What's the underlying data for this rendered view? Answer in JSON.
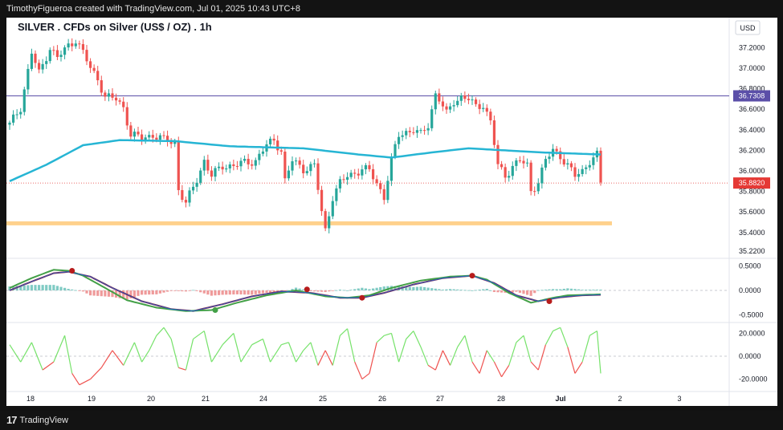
{
  "header": {
    "caption": "TimothyFigueroa created with TradingView.com, Jul 01, 2025 10:43 UTC+8"
  },
  "footer": {
    "brand": "TradingView",
    "logo_mark": "17"
  },
  "chart_data": {
    "type": "candlestick",
    "title": "SILVER . CFDs on Silver (US$ / OZ) . 1h",
    "currency_label": "USD",
    "x_ticks": [
      "18",
      "19",
      "20",
      "21",
      "24",
      "25",
      "26",
      "27",
      "28",
      "Jul",
      "2",
      "3"
    ],
    "y_ticks": [
      "37.2000",
      "37.0000",
      "36.8000",
      "36.6000",
      "36.4000",
      "36.2000",
      "36.0000",
      "35.8000",
      "35.6000",
      "35.4000",
      "35.2200"
    ],
    "ylim": [
      35.18,
      37.43
    ],
    "hline_value": 36.7308,
    "hline_label": "36.7308",
    "last_price": 35.882,
    "last_price_label": "35.8820",
    "support_zone": 35.49,
    "price_path": [
      [
        0,
        36.45
      ],
      [
        3,
        36.62
      ],
      [
        6,
        37.15
      ],
      [
        8,
        36.95
      ],
      [
        11,
        37.2
      ],
      [
        13,
        37.1
      ],
      [
        16,
        37.22
      ],
      [
        18,
        37.28
      ],
      [
        20,
        37.15
      ],
      [
        22,
        37.0
      ],
      [
        24,
        36.9
      ],
      [
        26,
        36.72
      ],
      [
        29,
        36.7
      ],
      [
        31,
        36.62
      ],
      [
        33,
        36.35
      ],
      [
        36,
        36.32
      ],
      [
        39,
        36.35
      ],
      [
        42,
        36.3
      ],
      [
        45,
        36.28
      ],
      [
        46,
        35.82
      ],
      [
        48,
        35.68
      ],
      [
        51,
        35.92
      ],
      [
        53,
        36.1
      ],
      [
        55,
        35.95
      ],
      [
        58,
        36.05
      ],
      [
        61,
        36.05
      ],
      [
        64,
        36.08
      ],
      [
        67,
        36.1
      ],
      [
        70,
        36.25
      ],
      [
        72,
        36.3
      ],
      [
        74,
        36.2
      ],
      [
        75,
        35.9
      ],
      [
        77,
        36.1
      ],
      [
        80,
        36.02
      ],
      [
        83,
        36.05
      ],
      [
        85,
        35.6
      ],
      [
        86,
        35.42
      ],
      [
        88,
        35.75
      ],
      [
        90,
        35.88
      ],
      [
        92,
        35.95
      ],
      [
        94,
        35.98
      ],
      [
        96,
        36.02
      ],
      [
        98,
        36.0
      ],
      [
        100,
        35.88
      ],
      [
        102,
        35.75
      ],
      [
        104,
        36.1
      ],
      [
        106,
        36.35
      ],
      [
        108,
        36.38
      ],
      [
        110,
        36.4
      ],
      [
        112,
        36.35
      ],
      [
        114,
        36.45
      ],
      [
        116,
        36.75
      ],
      [
        117,
        36.7
      ],
      [
        119,
        36.55
      ],
      [
        121,
        36.68
      ],
      [
        123,
        36.72
      ],
      [
        125,
        36.7
      ],
      [
        127,
        36.62
      ],
      [
        129,
        36.65
      ],
      [
        131,
        36.48
      ],
      [
        133,
        36.05
      ],
      [
        135,
        35.95
      ],
      [
        137,
        36.05
      ],
      [
        139,
        36.1
      ],
      [
        141,
        36.05
      ],
      [
        142,
        35.8
      ],
      [
        144,
        35.9
      ],
      [
        146,
        36.1
      ],
      [
        148,
        36.2
      ],
      [
        150,
        36.15
      ],
      [
        152,
        36.05
      ],
      [
        154,
        35.95
      ],
      [
        156,
        36.0
      ],
      [
        158,
        36.1
      ],
      [
        160,
        36.15
      ],
      [
        161,
        35.88
      ]
    ],
    "candle_count": 162,
    "ma": {
      "name": "MA",
      "color": "#26b5d4",
      "values": [
        [
          0,
          35.9
        ],
        [
          10,
          36.06
        ],
        [
          20,
          36.25
        ],
        [
          30,
          36.3
        ],
        [
          45,
          36.29
        ],
        [
          60,
          36.24
        ],
        [
          80,
          36.22
        ],
        [
          95,
          36.16
        ],
        [
          104,
          36.13
        ],
        [
          115,
          36.18
        ],
        [
          125,
          36.22
        ],
        [
          135,
          36.2
        ],
        [
          145,
          36.18
        ],
        [
          161,
          36.16
        ]
      ]
    },
    "macd": {
      "y_ticks": [
        "0.5000",
        "0.0000",
        "-0.5000"
      ],
      "ylim": [
        -0.62,
        0.62
      ],
      "macd_line": [
        [
          0,
          0.05
        ],
        [
          6,
          0.25
        ],
        [
          12,
          0.42
        ],
        [
          16,
          0.4
        ],
        [
          20,
          0.3
        ],
        [
          26,
          0.05
        ],
        [
          32,
          -0.2
        ],
        [
          40,
          -0.35
        ],
        [
          48,
          -0.42
        ],
        [
          55,
          -0.4
        ],
        [
          62,
          -0.25
        ],
        [
          70,
          -0.1
        ],
        [
          78,
          0.0
        ],
        [
          86,
          -0.12
        ],
        [
          92,
          -0.15
        ],
        [
          98,
          -0.1
        ],
        [
          104,
          0.05
        ],
        [
          112,
          0.2
        ],
        [
          120,
          0.28
        ],
        [
          126,
          0.3
        ],
        [
          130,
          0.22
        ],
        [
          136,
          -0.05
        ],
        [
          142,
          -0.25
        ],
        [
          148,
          -0.15
        ],
        [
          152,
          -0.1
        ],
        [
          161,
          -0.08
        ]
      ],
      "signal_line": [
        [
          0,
          0.0
        ],
        [
          6,
          0.18
        ],
        [
          12,
          0.35
        ],
        [
          16,
          0.38
        ],
        [
          22,
          0.28
        ],
        [
          28,
          0.05
        ],
        [
          36,
          -0.22
        ],
        [
          44,
          -0.38
        ],
        [
          50,
          -0.42
        ],
        [
          58,
          -0.28
        ],
        [
          66,
          -0.12
        ],
        [
          74,
          -0.02
        ],
        [
          82,
          -0.05
        ],
        [
          90,
          -0.15
        ],
        [
          96,
          -0.15
        ],
        [
          102,
          -0.05
        ],
        [
          110,
          0.12
        ],
        [
          118,
          0.25
        ],
        [
          126,
          0.3
        ],
        [
          132,
          0.15
        ],
        [
          138,
          -0.1
        ],
        [
          144,
          -0.22
        ],
        [
          150,
          -0.14
        ],
        [
          156,
          -0.1
        ],
        [
          161,
          -0.09
        ]
      ],
      "cross_points": [
        [
          17,
          0.4
        ],
        [
          81,
          0.02
        ],
        [
          96,
          -0.15
        ],
        [
          126,
          0.3
        ],
        [
          147,
          -0.22
        ],
        [
          56,
          -0.4
        ]
      ],
      "histogram_sign": [
        1,
        1,
        1,
        1,
        -1,
        -1,
        -1,
        -1,
        1,
        1,
        1,
        -1,
        -1,
        1,
        1,
        1,
        1,
        -1,
        -1,
        -1,
        1,
        1,
        1
      ]
    },
    "oscillator": {
      "y_ticks": [
        "20.0000",
        "0.0000",
        "-20.0000"
      ],
      "ylim": [
        -28,
        28
      ],
      "values": [
        [
          0,
          10
        ],
        [
          3,
          -5
        ],
        [
          6,
          12
        ],
        [
          9,
          -12
        ],
        [
          12,
          -5
        ],
        [
          15,
          18
        ],
        [
          17,
          -15
        ],
        [
          19,
          -25
        ],
        [
          22,
          -20
        ],
        [
          25,
          -10
        ],
        [
          28,
          5
        ],
        [
          31,
          -8
        ],
        [
          34,
          12
        ],
        [
          36,
          -5
        ],
        [
          38,
          5
        ],
        [
          40,
          18
        ],
        [
          42,
          25
        ],
        [
          44,
          15
        ],
        [
          46,
          -10
        ],
        [
          48,
          -12
        ],
        [
          50,
          15
        ],
        [
          53,
          22
        ],
        [
          55,
          -5
        ],
        [
          58,
          10
        ],
        [
          61,
          20
        ],
        [
          63,
          -5
        ],
        [
          66,
          10
        ],
        [
          69,
          15
        ],
        [
          71,
          -5
        ],
        [
          74,
          10
        ],
        [
          76,
          12
        ],
        [
          78,
          -5
        ],
        [
          80,
          5
        ],
        [
          82,
          12
        ],
        [
          84,
          -8
        ],
        [
          86,
          5
        ],
        [
          88,
          -8
        ],
        [
          90,
          18
        ],
        [
          92,
          24
        ],
        [
          94,
          -5
        ],
        [
          96,
          -20
        ],
        [
          98,
          -15
        ],
        [
          100,
          12
        ],
        [
          102,
          18
        ],
        [
          104,
          20
        ],
        [
          106,
          -5
        ],
        [
          108,
          15
        ],
        [
          110,
          22
        ],
        [
          112,
          8
        ],
        [
          114,
          -8
        ],
        [
          116,
          -12
        ],
        [
          118,
          5
        ],
        [
          120,
          -8
        ],
        [
          122,
          8
        ],
        [
          124,
          18
        ],
        [
          126,
          -5
        ],
        [
          128,
          -15
        ],
        [
          130,
          5
        ],
        [
          132,
          -5
        ],
        [
          134,
          -18
        ],
        [
          136,
          -8
        ],
        [
          138,
          12
        ],
        [
          140,
          18
        ],
        [
          142,
          -5
        ],
        [
          144,
          -12
        ],
        [
          146,
          10
        ],
        [
          148,
          22
        ],
        [
          150,
          25
        ],
        [
          152,
          8
        ],
        [
          154,
          -15
        ],
        [
          156,
          -5
        ],
        [
          158,
          18
        ],
        [
          160,
          22
        ],
        [
          161,
          -15
        ]
      ]
    }
  }
}
